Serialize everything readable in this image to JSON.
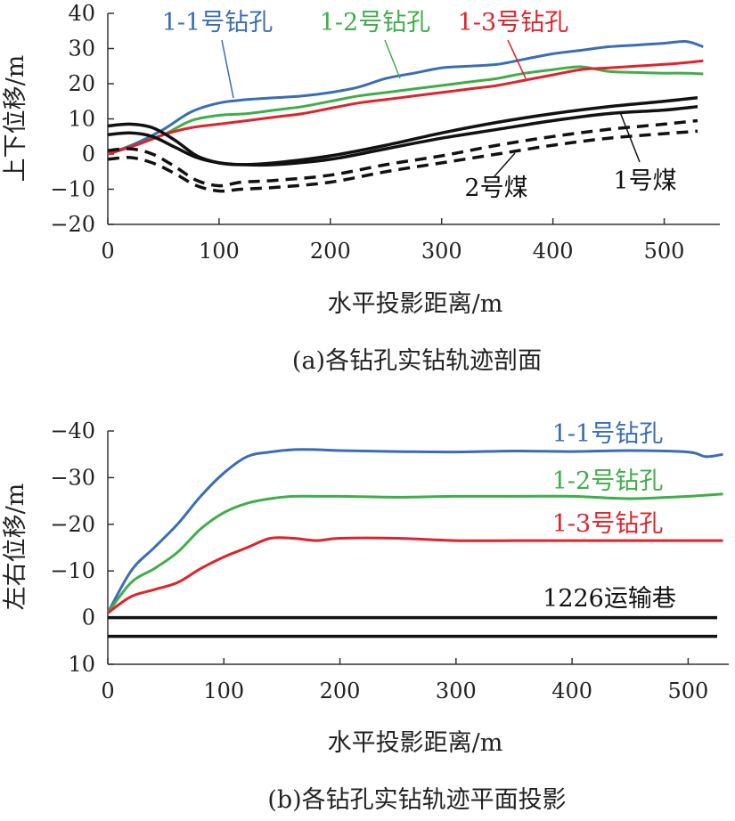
{
  "colors": {
    "blue": "#3a6db5",
    "green": "#3fae49",
    "red": "#e0232b",
    "black": "#111111"
  },
  "chart_data": [
    {
      "type": "line",
      "caption": "(a)各钻孔实钻轨迹剖面",
      "xlabel": "水平投影距离/m",
      "ylabel": "上下位移/m",
      "xlim": [
        0,
        550
      ],
      "ylim": [
        -20,
        40
      ],
      "xticks": [
        "0",
        "100",
        "200",
        "300",
        "400",
        "500"
      ],
      "yticks": [
        "40",
        "30",
        "20",
        "10",
        "0",
        "−10",
        "−20"
      ],
      "grid": false,
      "series": [
        {
          "name": "1-1号钻孔",
          "color": "#3a6db5",
          "dash": false,
          "width": 3,
          "x": [
            0,
            25,
            50,
            75,
            100,
            125,
            150,
            175,
            200,
            225,
            250,
            275,
            300,
            325,
            350,
            375,
            400,
            425,
            450,
            475,
            500,
            520,
            535
          ],
          "y": [
            0,
            3,
            7,
            12,
            14.5,
            15.5,
            16,
            16.5,
            17.5,
            19,
            21.5,
            23,
            24.5,
            25,
            25.5,
            27,
            28.5,
            29.5,
            30.5,
            31,
            31.5,
            32,
            30.5
          ]
        },
        {
          "name": "1-2号钻孔",
          "color": "#3fae49",
          "dash": false,
          "width": 3,
          "x": [
            0,
            25,
            50,
            75,
            100,
            125,
            150,
            175,
            200,
            225,
            250,
            275,
            300,
            325,
            350,
            375,
            400,
            425,
            450,
            475,
            500,
            520,
            535
          ],
          "y": [
            0,
            2.5,
            5.5,
            9.5,
            11,
            11.5,
            12.5,
            13.5,
            15,
            16.5,
            17.5,
            18.5,
            19.5,
            20.5,
            21.5,
            23,
            24,
            24.8,
            23.5,
            23.2,
            23,
            23,
            22.8
          ]
        },
        {
          "name": "1-3号钻孔",
          "color": "#e0232b",
          "dash": false,
          "width": 3,
          "x": [
            0,
            25,
            50,
            75,
            100,
            125,
            150,
            175,
            200,
            225,
            250,
            275,
            300,
            325,
            350,
            375,
            400,
            425,
            450,
            475,
            500,
            520,
            535
          ],
          "y": [
            0,
            2.5,
            5.5,
            7.5,
            8.5,
            9.5,
            10.5,
            11.5,
            13,
            14.5,
            15.5,
            16.5,
            17.5,
            18.5,
            19.5,
            21,
            22.5,
            24,
            24.5,
            25,
            25.5,
            26,
            26.5
          ]
        },
        {
          "name": "1号煤",
          "color": "#111111",
          "dash": false,
          "width": 3.5,
          "x": [
            0,
            20,
            40,
            60,
            80,
            100,
            120,
            150,
            200,
            250,
            300,
            350,
            400,
            450,
            500,
            530
          ],
          "y": [
            8,
            8.5,
            7.5,
            4,
            -0.5,
            -2.5,
            -3,
            -2.5,
            -0.5,
            2.5,
            6,
            9,
            11.5,
            13.5,
            15,
            16
          ]
        },
        {
          "name": "",
          "color": "#111111",
          "dash": false,
          "width": 3.5,
          "x": [
            0,
            20,
            40,
            60,
            80,
            100,
            120,
            150,
            200,
            250,
            300,
            350,
            400,
            450,
            500,
            530
          ],
          "y": [
            5.5,
            6,
            5,
            2,
            -1,
            -2.5,
            -3,
            -3,
            -1.5,
            1.5,
            4.5,
            7,
            9.5,
            11.5,
            12.5,
            13.5
          ]
        },
        {
          "name": "2号煤",
          "color": "#111111",
          "dash": true,
          "width": 3.5,
          "x": [
            0,
            20,
            40,
            60,
            80,
            100,
            120,
            150,
            200,
            250,
            300,
            350,
            400,
            450,
            500,
            530
          ],
          "y": [
            1,
            1.5,
            0,
            -3.5,
            -7.5,
            -9,
            -8,
            -7.5,
            -6,
            -3,
            -0.5,
            2.5,
            5,
            7,
            8.5,
            9.5
          ]
        },
        {
          "name": "",
          "color": "#111111",
          "dash": true,
          "width": 3.5,
          "x": [
            0,
            20,
            40,
            60,
            80,
            100,
            120,
            150,
            200,
            250,
            300,
            350,
            400,
            450,
            500,
            530
          ],
          "y": [
            -1.5,
            -1,
            -2.5,
            -5.5,
            -9,
            -10.5,
            -10,
            -9.5,
            -8,
            -5,
            -2.5,
            0,
            2.5,
            4.5,
            5.8,
            6.5
          ]
        }
      ],
      "labels": [
        {
          "text": "1-1号钻孔",
          "color": "#3a6db5"
        },
        {
          "text": "1-2号钻孔",
          "color": "#3fae49"
        },
        {
          "text": "1-3号钻孔",
          "color": "#e0232b"
        },
        {
          "text": "2号煤",
          "color": "#111111"
        },
        {
          "text": "1号煤",
          "color": "#111111"
        }
      ]
    },
    {
      "type": "line",
      "caption": "(b)各钻孔实钻轨迹平面投影",
      "xlabel": "水平投影距离/m",
      "ylabel": "左右位移/m",
      "xlim": [
        0,
        535
      ],
      "ylim": [
        10,
        -40
      ],
      "xticks": [
        "0",
        "100",
        "200",
        "300",
        "400",
        "500"
      ],
      "yticks": [
        "−40",
        "−30",
        "−20",
        "−10",
        "0",
        "10"
      ],
      "grid": false,
      "series": [
        {
          "name": "1-1号钻孔",
          "color": "#3a6db5",
          "dash": false,
          "width": 3,
          "x": [
            0,
            20,
            40,
            60,
            80,
            100,
            120,
            140,
            160,
            180,
            200,
            250,
            300,
            350,
            400,
            450,
            500,
            515,
            530
          ],
          "y": [
            -1,
            -10,
            -15,
            -20,
            -26,
            -31,
            -34.5,
            -35.5,
            -36,
            -36,
            -35.8,
            -35.6,
            -35.5,
            -35.7,
            -35.6,
            -35.8,
            -35.5,
            -34.5,
            -35
          ]
        },
        {
          "name": "1-2号钻孔",
          "color": "#3fae49",
          "dash": false,
          "width": 3,
          "x": [
            0,
            20,
            40,
            60,
            80,
            100,
            120,
            140,
            160,
            180,
            200,
            250,
            300,
            350,
            400,
            450,
            500,
            530
          ],
          "y": [
            -1,
            -7.5,
            -10.5,
            -14,
            -19,
            -22.5,
            -24.5,
            -25.5,
            -26,
            -26,
            -26,
            -25.8,
            -26,
            -26,
            -26,
            -25.5,
            -26,
            -26.5
          ]
        },
        {
          "name": "1-3号钻孔",
          "color": "#e0232b",
          "dash": false,
          "width": 3,
          "x": [
            0,
            20,
            40,
            60,
            80,
            100,
            120,
            140,
            160,
            180,
            200,
            250,
            300,
            350,
            400,
            450,
            500,
            530
          ],
          "y": [
            -1,
            -4.5,
            -6,
            -7.5,
            -10.5,
            -13,
            -15,
            -17,
            -17,
            -16.5,
            -17,
            -17,
            -16.5,
            -16.5,
            -16.5,
            -16.5,
            -16.5,
            -16.5
          ]
        },
        {
          "name": "1226运输巷",
          "color": "#111111",
          "dash": false,
          "width": 3.5,
          "x": [
            0,
            525
          ],
          "y": [
            0,
            0
          ]
        },
        {
          "name": "",
          "color": "#111111",
          "dash": false,
          "width": 3.5,
          "x": [
            0,
            525
          ],
          "y": [
            4,
            4
          ]
        }
      ],
      "labels": [
        {
          "text": "1-1号钻孔",
          "color": "#3a6db5"
        },
        {
          "text": "1-2号钻孔",
          "color": "#3fae49"
        },
        {
          "text": "1-3号钻孔",
          "color": "#e0232b"
        },
        {
          "text": "1226运输巷",
          "color": "#111111"
        }
      ]
    }
  ]
}
